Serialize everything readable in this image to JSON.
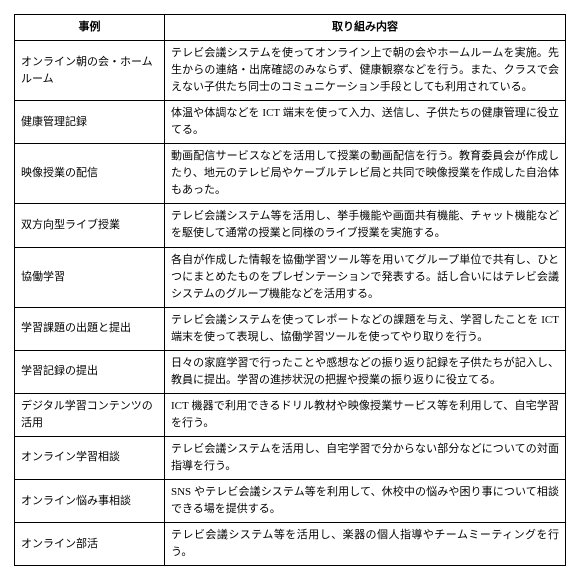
{
  "table": {
    "header": {
      "case": "事例",
      "desc": "取り組み内容"
    },
    "rows": [
      {
        "case": "オンライン朝の会・ホームルーム",
        "desc": "テレビ会議システムを使ってオンライン上で朝の会やホームルームを実施。先生からの連絡・出席確認のみならず、健康観察などを行う。また、クラスで会えない子供たち同士のコミュニケーション手段としても利用されている。"
      },
      {
        "case": "健康管理記録",
        "desc": "体温や体調などを ICT 端末を使って入力、送信し、子供たちの健康管理に役立てる。"
      },
      {
        "case": "映像授業の配信",
        "desc": "動画配信サービスなどを活用して授業の動画配信を行う。教育委員会が作成したり、地元のテレビ局やケーブルテレビ局と共同で映像授業を作成した自治体もあった。"
      },
      {
        "case": "双方向型ライブ授業",
        "desc": "テレビ会議システム等を活用し、挙手機能や画面共有機能、チャット機能などを駆使して通常の授業と同様のライブ授業を実施する。"
      },
      {
        "case": "協働学習",
        "desc": "各自が作成した情報を協働学習ツール等を用いてグループ単位で共有し、ひとつにまとめたものをプレゼンテーションで発表する。話し合いにはテレビ会議システムのグループ機能などを活用する。"
      },
      {
        "case": "学習課題の出題と提出",
        "desc": "テレビ会議システムを使ってレポートなどの課題を与え、学習したことを ICT 端末を使って表現し、協働学習ツールを使ってやり取りを行う。"
      },
      {
        "case": "学習記録の提出",
        "desc": "日々の家庭学習で行ったことや感想などの振り返り記録を子供たちが記入し、教員に提出。学習の進捗状況の把握や授業の振り返りに役立てる。"
      },
      {
        "case": "デジタル学習コンテンツの活用",
        "desc": "ICT 機器で利用できるドリル教材や映像授業サービス等を利用して、自宅学習を行う。"
      },
      {
        "case": "オンライン学習相談",
        "desc": "テレビ会議システムを活用し、自宅学習で分からない部分などについての対面指導を行う。"
      },
      {
        "case": "オンライン悩み事相談",
        "desc": "SNS やテレビ会議システム等を利用して、休校中の悩みや困り事について相談できる場を提供する。"
      },
      {
        "case": "オンライン部活",
        "desc": "テレビ会議システム等を活用し、楽器の個人指導やチームミーティングを行う。"
      }
    ]
  }
}
